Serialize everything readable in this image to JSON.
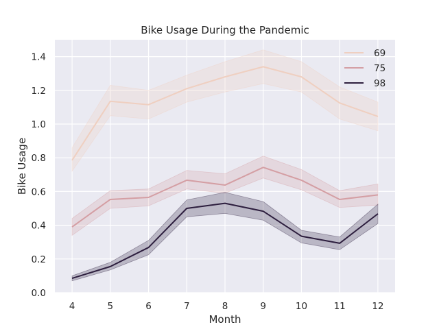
{
  "chart_data": {
    "type": "line",
    "title": "Bike Usage During the Pandemic",
    "xlabel": "Month",
    "ylabel": "Bike Usage",
    "x": [
      4,
      5,
      6,
      7,
      8,
      9,
      10,
      11,
      12
    ],
    "x_ticks": [
      "4",
      "5",
      "6",
      "7",
      "8",
      "9",
      "10",
      "11",
      "12"
    ],
    "xlim": [
      3.55,
      12.45
    ],
    "ylim": [
      0.0,
      1.5
    ],
    "y_ticks": [
      "0.0",
      "0.2",
      "0.4",
      "0.6",
      "0.8",
      "1.0",
      "1.2",
      "1.4"
    ],
    "grid": true,
    "legend_position": "top-right",
    "series": [
      {
        "name": "69",
        "color": "#efcfc0",
        "values": [
          0.785,
          1.135,
          1.115,
          1.21,
          1.28,
          1.34,
          1.28,
          1.125,
          1.045
        ],
        "ci_lower": [
          0.72,
          1.05,
          1.03,
          1.13,
          1.19,
          1.24,
          1.19,
          1.03,
          0.96
        ],
        "ci_upper": [
          0.86,
          1.23,
          1.2,
          1.29,
          1.37,
          1.44,
          1.37,
          1.22,
          1.13
        ]
      },
      {
        "name": "75",
        "color": "#d49ea3",
        "values": [
          0.39,
          0.553,
          0.565,
          0.667,
          0.638,
          0.743,
          0.667,
          0.553,
          0.58
        ],
        "ci_lower": [
          0.34,
          0.5,
          0.515,
          0.615,
          0.59,
          0.68,
          0.61,
          0.505,
          0.52
        ],
        "ci_upper": [
          0.44,
          0.605,
          0.615,
          0.725,
          0.705,
          0.81,
          0.73,
          0.605,
          0.645
        ]
      },
      {
        "name": "98",
        "color": "#2d1e3e",
        "values": [
          0.085,
          0.155,
          0.268,
          0.5,
          0.53,
          0.483,
          0.335,
          0.293,
          0.468
        ],
        "ci_lower": [
          0.07,
          0.135,
          0.225,
          0.45,
          0.47,
          0.43,
          0.295,
          0.255,
          0.41
        ],
        "ci_upper": [
          0.1,
          0.18,
          0.31,
          0.55,
          0.595,
          0.54,
          0.37,
          0.33,
          0.525
        ]
      }
    ]
  }
}
